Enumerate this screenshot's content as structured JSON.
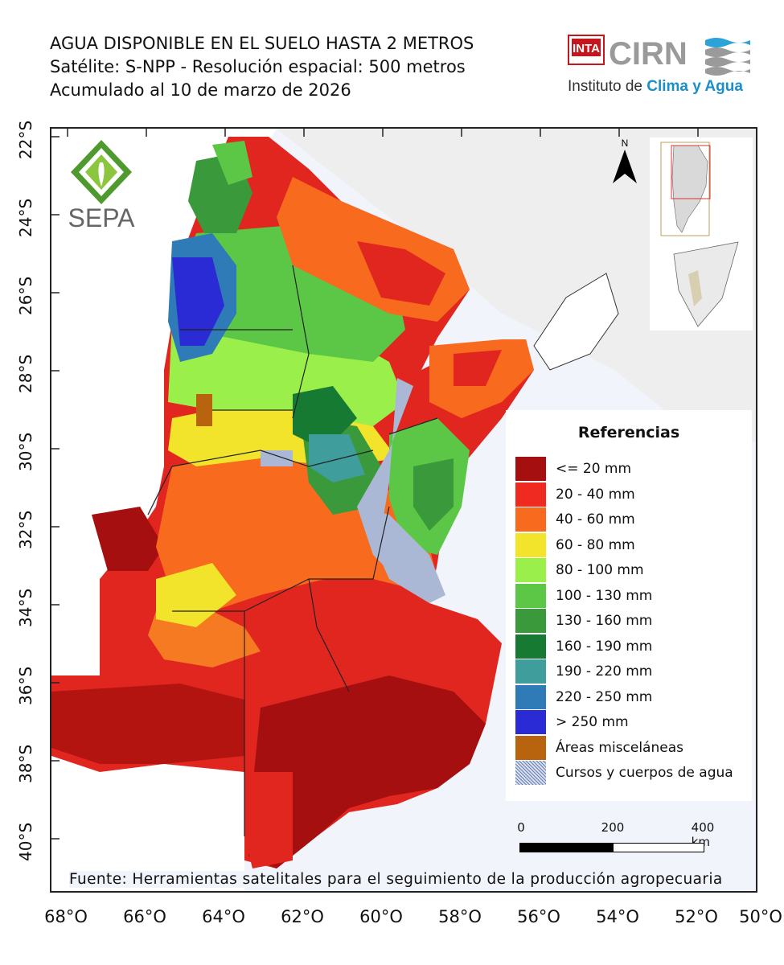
{
  "header": {
    "title": "AGUA DISPONIBLE EN EL SUELO HASTA 2 METROS",
    "subtitle": "Satélite: S-NPP - Resolución espacial: 500 metros",
    "date_line": "Acumulado al 10 de marzo de 2026"
  },
  "logos": {
    "inta": "INTA",
    "cirn": "CIRN",
    "institute_prefix": "Instituto de ",
    "institute_highlight": "Clima y Agua",
    "sepa": "SEPA"
  },
  "axes": {
    "lat_ticks": [
      "22°S",
      "24°S",
      "26°S",
      "28°S",
      "30°S",
      "32°S",
      "34°S",
      "36°S",
      "38°S",
      "40°S"
    ],
    "lon_ticks": [
      "68°O",
      "66°O",
      "64°O",
      "62°O",
      "60°O",
      "58°O",
      "56°O",
      "54°O",
      "52°O",
      "50°O"
    ]
  },
  "north_arrow": {
    "label": "N"
  },
  "legend": {
    "title": "Referencias",
    "items": [
      {
        "label": "<= 20 mm",
        "color": "#a50f0f"
      },
      {
        "label": "20 - 40 mm",
        "color": "#ef2a21"
      },
      {
        "label": "40 - 60 mm",
        "color": "#f86a1e"
      },
      {
        "label": "60 - 80 mm",
        "color": "#f2e42b"
      },
      {
        "label": "80 - 100 mm",
        "color": "#9bef4a"
      },
      {
        "label": "100 - 130 mm",
        "color": "#5cc746"
      },
      {
        "label": "130 - 160 mm",
        "color": "#3a9a3b"
      },
      {
        "label": "160 - 190 mm",
        "color": "#177a32"
      },
      {
        "label": "190 - 220 mm",
        "color": "#3f9d9b"
      },
      {
        "label": "220 - 250 mm",
        "color": "#2f7bb8"
      },
      {
        "label": "> 250 mm",
        "color": "#2a2bd4"
      },
      {
        "label": "Áreas misceláneas",
        "color": "#b8640f"
      },
      {
        "label": "Cursos y cuerpos de agua",
        "color": "#aab8d6"
      }
    ]
  },
  "scale_bar": {
    "labels": [
      "0",
      "200",
      "400 km"
    ]
  },
  "source": "Fuente: Herramientas satelitales para el seguimiento de la producción agropecuaria"
}
